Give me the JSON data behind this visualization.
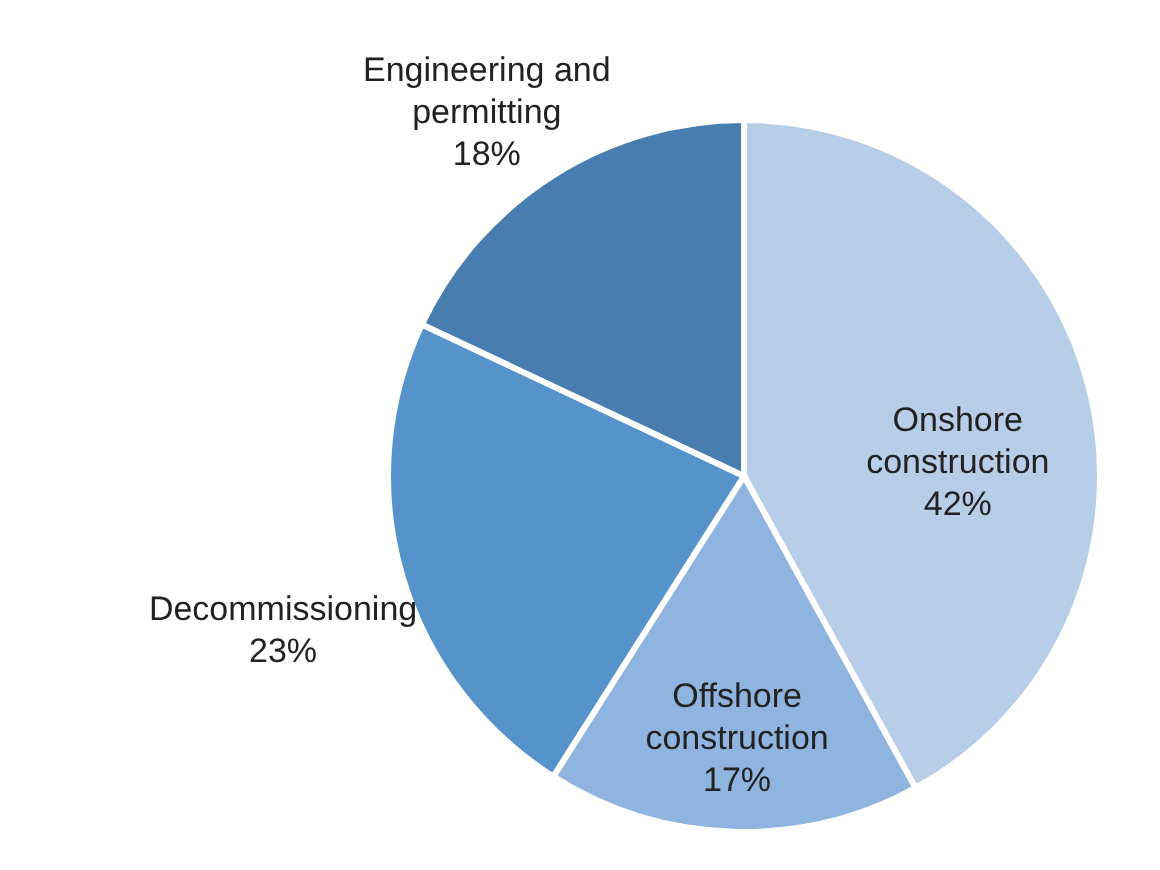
{
  "chart_data": {
    "type": "pie",
    "categories": [
      "Onshore construction",
      "Offshore construction",
      "Decommissioning",
      "Engineering and permitting"
    ],
    "values": [
      42,
      17,
      23,
      18
    ],
    "colors": [
      "#b7cde8",
      "#8eb4df",
      "#5793cb",
      "#487daf"
    ],
    "value_labels": [
      "42%",
      "17%",
      "23%",
      "18%"
    ]
  }
}
